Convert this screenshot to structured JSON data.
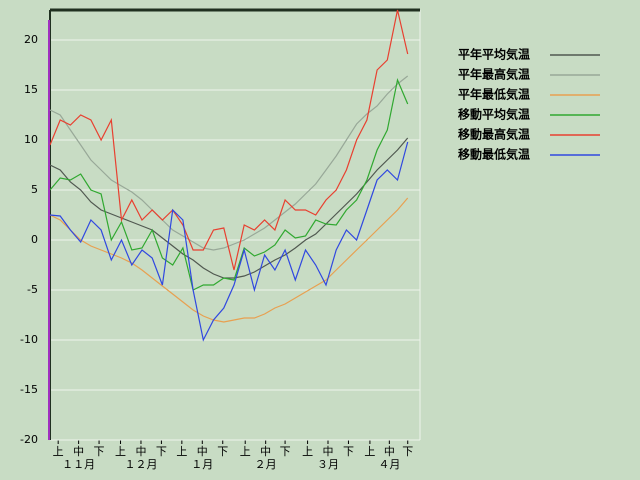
{
  "chart_data": {
    "type": "line",
    "x": [
      0,
      5,
      10,
      15,
      20,
      25,
      30,
      35,
      40,
      45,
      50,
      55,
      60,
      65,
      70,
      75,
      80,
      85,
      90,
      95,
      100,
      105,
      110,
      115,
      120,
      125,
      130,
      135,
      140,
      145,
      150,
      155,
      160,
      165,
      170,
      175
    ],
    "xlim": [
      0,
      181
    ],
    "xticks": [
      {
        "value": 4,
        "label": "上"
      },
      {
        "value": 14,
        "label": "中"
      },
      {
        "value": 24,
        "label": "下"
      },
      {
        "value": 34.5,
        "label": "上"
      },
      {
        "value": 44.5,
        "label": "中"
      },
      {
        "value": 54.5,
        "label": "下"
      },
      {
        "value": 64.5,
        "label": "上"
      },
      {
        "value": 74.5,
        "label": "中"
      },
      {
        "value": 84.5,
        "label": "下"
      },
      {
        "value": 95.5,
        "label": "上"
      },
      {
        "value": 105.5,
        "label": "中"
      },
      {
        "value": 115,
        "label": "下"
      },
      {
        "value": 126,
        "label": "上"
      },
      {
        "value": 136,
        "label": "中"
      },
      {
        "value": 146,
        "label": "下"
      },
      {
        "value": 156.5,
        "label": "上"
      },
      {
        "value": 166,
        "label": "中"
      },
      {
        "value": 175,
        "label": "下"
      }
    ],
    "month_labels": [
      {
        "value": 14,
        "label": "１１月"
      },
      {
        "value": 44.5,
        "label": "１２月"
      },
      {
        "value": 74.5,
        "label": "１月"
      },
      {
        "value": 105.5,
        "label": "２月"
      },
      {
        "value": 136,
        "label": "３月"
      },
      {
        "value": 166,
        "label": "４月"
      }
    ],
    "ylim": [
      -20,
      23
    ],
    "yticks": [
      -20,
      -15,
      -10,
      -5,
      0,
      5,
      10,
      15,
      20
    ],
    "grid": true,
    "legend": "right",
    "series": [
      {
        "name": "平年平均気温",
        "color": "#505850",
        "values": [
          7.5,
          7,
          5.8,
          5,
          3.8,
          3,
          2.6,
          2.2,
          1.8,
          1.4,
          1,
          0.2,
          -0.6,
          -1.4,
          -2,
          -2.8,
          -3.4,
          -3.8,
          -3.8,
          -3.6,
          -3.2,
          -2.6,
          -2,
          -1.5,
          -0.8,
          0,
          0.6,
          1.6,
          2.6,
          3.6,
          4.6,
          5.8,
          7,
          8,
          9,
          10.2
        ]
      },
      {
        "name": "平年最高気温",
        "color": "#98a898",
        "values": [
          13,
          12.5,
          11,
          9.5,
          8,
          7,
          6,
          5.4,
          4.8,
          4,
          3,
          2,
          1,
          0.4,
          -0.2,
          -0.8,
          -1,
          -0.8,
          -0.4,
          0,
          0.6,
          1.2,
          2,
          2.8,
          3.6,
          4.6,
          5.6,
          7,
          8.4,
          10,
          11.6,
          12.6,
          13.4,
          14.6,
          15.6,
          16.4
        ]
      },
      {
        "name": "平年最低気温",
        "color": "#e8a050",
        "values": [
          2.5,
          2,
          1,
          0,
          -0.6,
          -1,
          -1.4,
          -1.8,
          -2.3,
          -3,
          -3.8,
          -4.6,
          -5.4,
          -6.2,
          -7,
          -7.6,
          -8,
          -8.2,
          -8,
          -7.8,
          -7.8,
          -7.4,
          -6.8,
          -6.4,
          -5.8,
          -5.2,
          -4.6,
          -4,
          -3,
          -2,
          -1,
          0,
          1,
          2,
          3,
          4.2
        ]
      },
      {
        "name": "移動平均気温",
        "color": "#30a830",
        "values": [
          5,
          6.2,
          6,
          6.6,
          5,
          4.6,
          0,
          1.8,
          -1,
          -0.8,
          1,
          -1.8,
          -2.5,
          -0.8,
          -5,
          -4.5,
          -4.5,
          -3.8,
          -4,
          -0.8,
          -1.6,
          -1.2,
          -0.5,
          1,
          0.2,
          0.4,
          2,
          1.6,
          1.5,
          3,
          4,
          6,
          9,
          11,
          16,
          13.6
        ]
      },
      {
        "name": "移動最高気温",
        "color": "#e84030",
        "values": [
          9.5,
          12,
          11.5,
          12.5,
          12,
          10,
          12,
          2,
          4,
          2,
          3,
          2,
          3,
          1.5,
          -1,
          -1,
          1,
          1.2,
          -3,
          1.5,
          1,
          2,
          1,
          4,
          3,
          3,
          2.5,
          4,
          5,
          7,
          10,
          12,
          17,
          18,
          23,
          18.6
        ]
      },
      {
        "name": "移動最低気温",
        "color": "#3048e0",
        "values": [
          2.5,
          2.4,
          1,
          -0.2,
          2,
          1,
          -2,
          0,
          -2.5,
          -1,
          -1.8,
          -4.5,
          3,
          2,
          -5,
          -10,
          -8,
          -6.8,
          -4.5,
          -1,
          -5,
          -1.5,
          -3,
          -1,
          -4,
          -1,
          -2.5,
          -4.5,
          -1,
          1,
          0,
          3,
          6,
          7,
          6,
          9.8
        ]
      }
    ]
  }
}
